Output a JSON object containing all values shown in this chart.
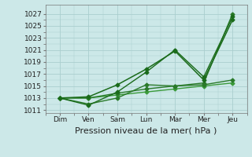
{
  "days": [
    "Dim",
    "Ven",
    "Sam",
    "Lun",
    "Mar",
    "Mer",
    "Jeu"
  ],
  "day_positions": [
    0,
    1,
    2,
    3,
    4,
    5,
    6
  ],
  "line_straight_low": [
    1013.0,
    1013.0,
    1013.5,
    1014.0,
    1014.5,
    1015.0,
    1015.5
  ],
  "line_straight_mid": [
    1013.0,
    1013.0,
    1013.8,
    1014.5,
    1015.0,
    1015.5,
    1027.0
  ],
  "line_zigzag_low": [
    1013.0,
    1012.0,
    1013.0,
    1015.2,
    1015.0,
    1015.2,
    1016.0
  ],
  "line_zigzag_high": [
    1013.0,
    1011.8,
    1014.0,
    1017.3,
    1021.0,
    1016.5,
    1026.5
  ],
  "line_upper": [
    1013.0,
    1013.2,
    1015.2,
    1017.8,
    1020.8,
    1016.0,
    1026.0
  ],
  "ylim": [
    1010.5,
    1028.5
  ],
  "yticks": [
    1011,
    1013,
    1015,
    1017,
    1019,
    1021,
    1023,
    1025,
    1027
  ],
  "color_dark": "#1a6b1a",
  "color_mid": "#2a7a2a",
  "color_light": "#3a9a3a",
  "bg_color": "#cce8e8",
  "grid_color": "#aacece",
  "xlabel": "Pression niveau de la mer( hPa )",
  "xlabel_fontsize": 8,
  "tick_fontsize": 6.5,
  "markersize": 2.5,
  "linewidth": 1.0
}
